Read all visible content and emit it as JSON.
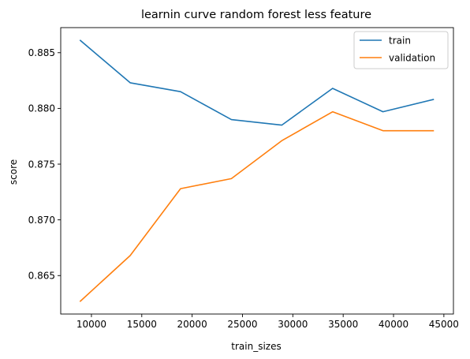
{
  "chart_data": {
    "type": "line",
    "title": "learnin curve random forest less feature",
    "xlabel": "train_sizes",
    "ylabel": "score",
    "xlim": [
      6950,
      45950
    ],
    "ylim": [
      0.86155,
      0.88725
    ],
    "xticks": [
      10000,
      15000,
      20000,
      25000,
      30000,
      35000,
      40000,
      45000
    ],
    "xtick_labels": [
      "10000",
      "15000",
      "20000",
      "25000",
      "30000",
      "35000",
      "40000",
      "45000"
    ],
    "yticks": [
      0.865,
      0.87,
      0.875,
      0.88,
      0.885
    ],
    "ytick_labels": [
      "0.865",
      "0.870",
      "0.875",
      "0.880",
      "0.885"
    ],
    "x": [
      8900,
      13850,
      18850,
      23900,
      28900,
      33950,
      38950,
      43950
    ],
    "series": [
      {
        "name": "train",
        "color": "#1f77b4",
        "values": [
          0.8861,
          0.8823,
          0.8815,
          0.879,
          0.8785,
          0.8818,
          0.8797,
          0.8808
        ]
      },
      {
        "name": "validation",
        "color": "#ff7f0e",
        "values": [
          0.8627,
          0.8668,
          0.8728,
          0.8737,
          0.8771,
          0.8797,
          0.878,
          0.878
        ]
      }
    ],
    "grid": false,
    "legend_position": "top-right"
  }
}
